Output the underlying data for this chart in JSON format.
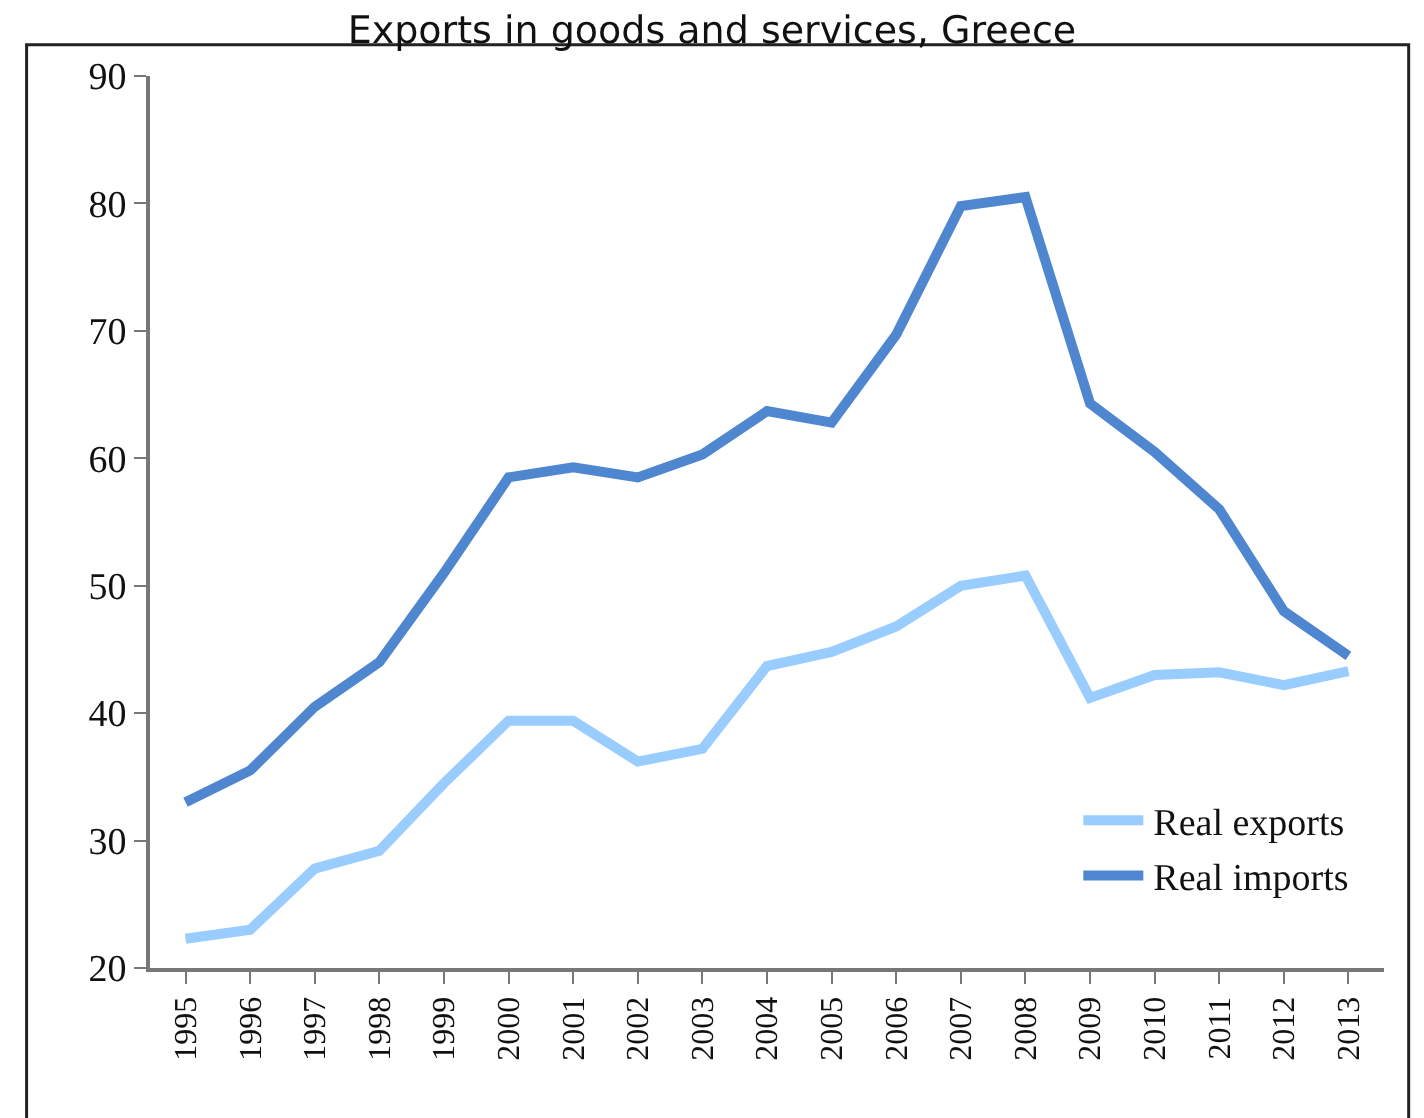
{
  "chart_data": {
    "type": "line",
    "title": "Exports in goods and services, Greece",
    "categories": [
      "1995",
      "1996",
      "1997",
      "1998",
      "1999",
      "2000",
      "2001",
      "2002",
      "2003",
      "2004",
      "2005",
      "2006",
      "2007",
      "2008",
      "2009",
      "2010",
      "2011",
      "2012",
      "2013"
    ],
    "series": [
      {
        "name": "Real exports",
        "color": "#99ccff",
        "values": [
          22.3,
          23,
          27.8,
          29.2,
          34.5,
          39.4,
          39.4,
          36.2,
          37.2,
          43.7,
          44.8,
          46.8,
          50,
          50.8,
          41.2,
          43,
          43.2,
          42.2,
          43.3
        ]
      },
      {
        "name": "Real imports",
        "color": "#4f86d0",
        "values": [
          33,
          35.5,
          40.5,
          44,
          51,
          58.5,
          59.3,
          58.5,
          60.3,
          63.7,
          62.8,
          69.7,
          79.8,
          80.5,
          64.3,
          60.5,
          56,
          48,
          44.5
        ]
      }
    ],
    "ylim": [
      20,
      90
    ],
    "yticks": [
      20,
      30,
      40,
      50,
      60,
      70,
      80,
      90
    ],
    "grid": false,
    "legend": "bottom right",
    "marker": "none",
    "line_style": "solid"
  }
}
